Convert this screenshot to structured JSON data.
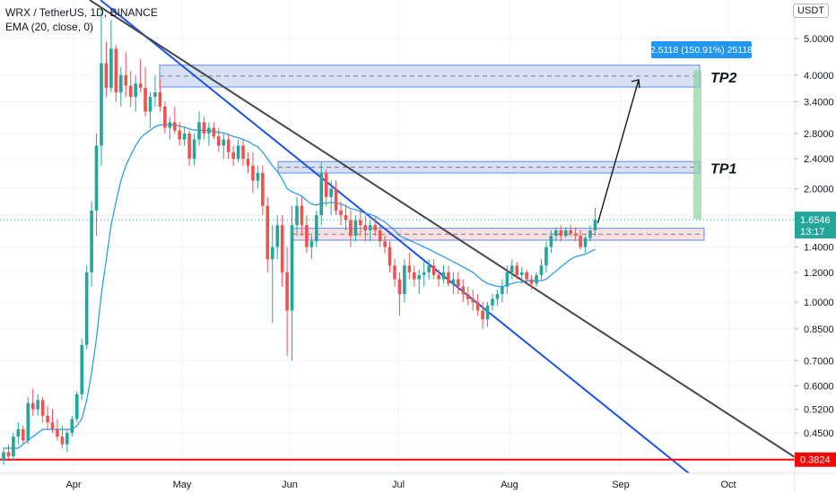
{
  "header": {
    "symbol_line": "WRX / TetherUS, 1D, BINANCE",
    "indicator_line": "EMA (20, close, 0)"
  },
  "currency": "USDT",
  "colors": {
    "up": "#26a69a",
    "down": "#ef5350",
    "ema": "#2196f3",
    "blue_line": "#1e53e5",
    "gray_line": "#434651",
    "support_line": "#ff0000",
    "zone_blue_fill": "#d1dcef",
    "zone_blue_stroke": "#5b8def",
    "zone_red_fill": "#fbd9dc",
    "zone_red_stroke": "#5b8def",
    "measure": "#2196f3",
    "measure_bar": "#8fd19e",
    "current_price": "#26a69a"
  },
  "chart_data": {
    "type": "candlestick",
    "y_scale": "log",
    "ylim": [
      0.36,
      6.0
    ],
    "y_ticks": [
      "5.0000",
      "4.0000",
      "3.4000",
      "2.8000",
      "2.4000",
      "2.0000",
      "1.7000",
      "1.4000",
      "1.2000",
      "1.0000",
      "0.8500",
      "0.7000",
      "0.6000",
      "0.5200",
      "0.4500"
    ],
    "x_ticks": [
      "Apr",
      "May",
      "Jun",
      "Jul",
      "Aug",
      "Sep",
      "Oct"
    ],
    "price_labels": {
      "current": "1.6546",
      "countdown": "13:17",
      "support": "0.3824"
    },
    "zones": [
      {
        "name": "TP2",
        "label": "TP2",
        "low": 3.72,
        "high": 4.25
      },
      {
        "name": "TP1",
        "label": "TP1",
        "low": 2.2,
        "high": 2.36
      },
      {
        "name": "entry",
        "label": "",
        "low": 1.46,
        "high": 1.57
      }
    ],
    "support_level": 0.3824,
    "measure_label": "2.5118 (150.91%) 25118",
    "candles": [
      [
        0.38,
        0.41,
        0.37,
        0.4
      ],
      [
        0.4,
        0.42,
        0.38,
        0.39
      ],
      [
        0.39,
        0.45,
        0.38,
        0.44
      ],
      [
        0.44,
        0.48,
        0.42,
        0.46
      ],
      [
        0.46,
        0.47,
        0.42,
        0.43
      ],
      [
        0.43,
        0.56,
        0.42,
        0.54
      ],
      [
        0.54,
        0.59,
        0.5,
        0.52
      ],
      [
        0.52,
        0.57,
        0.5,
        0.55
      ],
      [
        0.55,
        0.56,
        0.48,
        0.5
      ],
      [
        0.5,
        0.53,
        0.46,
        0.48
      ],
      [
        0.48,
        0.52,
        0.45,
        0.46
      ],
      [
        0.46,
        0.49,
        0.43,
        0.44
      ],
      [
        0.44,
        0.47,
        0.41,
        0.42
      ],
      [
        0.42,
        0.46,
        0.4,
        0.45
      ],
      [
        0.45,
        0.5,
        0.44,
        0.49
      ],
      [
        0.49,
        0.58,
        0.48,
        0.57
      ],
      [
        0.57,
        0.8,
        0.55,
        0.77
      ],
      [
        0.77,
        1.25,
        0.75,
        1.2
      ],
      [
        1.2,
        1.85,
        1.1,
        1.75
      ],
      [
        1.75,
        2.8,
        1.5,
        2.6
      ],
      [
        2.6,
        6.0,
        2.3,
        4.3
      ],
      [
        4.3,
        4.9,
        3.5,
        3.7
      ],
      [
        3.7,
        5.6,
        3.6,
        4.7
      ],
      [
        4.7,
        4.8,
        3.4,
        3.6
      ],
      [
        3.6,
        4.2,
        3.3,
        4.0
      ],
      [
        4.0,
        4.6,
        3.5,
        3.75
      ],
      [
        3.75,
        4.1,
        3.3,
        3.5
      ],
      [
        3.5,
        4.0,
        3.2,
        3.8
      ],
      [
        3.8,
        4.4,
        3.6,
        3.7
      ],
      [
        3.7,
        4.2,
        3.1,
        3.2
      ],
      [
        3.2,
        3.6,
        2.9,
        3.5
      ],
      [
        3.5,
        4.0,
        3.3,
        3.6
      ],
      [
        3.6,
        3.9,
        3.2,
        3.3
      ],
      [
        3.3,
        3.4,
        2.8,
        2.9
      ],
      [
        2.9,
        3.1,
        2.7,
        3.0
      ],
      [
        3.0,
        3.3,
        2.8,
        2.85
      ],
      [
        2.85,
        3.0,
        2.6,
        2.7
      ],
      [
        2.7,
        2.9,
        2.6,
        2.8
      ],
      [
        2.8,
        2.85,
        2.3,
        2.4
      ],
      [
        2.4,
        2.8,
        2.3,
        2.7
      ],
      [
        2.7,
        3.2,
        2.6,
        3.0
      ],
      [
        3.0,
        3.1,
        2.7,
        2.8
      ],
      [
        2.8,
        3.0,
        2.6,
        2.9
      ],
      [
        2.9,
        3.0,
        2.7,
        2.75
      ],
      [
        2.75,
        2.9,
        2.5,
        2.6
      ],
      [
        2.6,
        2.8,
        2.4,
        2.7
      ],
      [
        2.7,
        2.8,
        2.4,
        2.5
      ],
      [
        2.5,
        2.6,
        2.3,
        2.4
      ],
      [
        2.4,
        2.7,
        2.35,
        2.6
      ],
      [
        2.6,
        2.7,
        2.3,
        2.4
      ],
      [
        2.4,
        2.5,
        2.2,
        2.3
      ],
      [
        2.3,
        2.5,
        1.95,
        2.1
      ],
      [
        2.1,
        2.3,
        2.0,
        2.2
      ],
      [
        2.2,
        2.3,
        1.7,
        1.8
      ],
      [
        1.8,
        1.9,
        1.2,
        1.3
      ],
      [
        1.3,
        1.6,
        0.88,
        1.4
      ],
      [
        1.4,
        1.7,
        1.3,
        1.6
      ],
      [
        1.6,
        1.7,
        1.1,
        1.2
      ],
      [
        1.2,
        1.4,
        0.72,
        0.95
      ],
      [
        0.95,
        1.8,
        0.7,
        1.6
      ],
      [
        1.6,
        1.9,
        1.5,
        1.8
      ],
      [
        1.8,
        1.9,
        1.5,
        1.6
      ],
      [
        1.6,
        1.7,
        1.35,
        1.4
      ],
      [
        1.4,
        1.5,
        1.3,
        1.45
      ],
      [
        1.45,
        1.75,
        1.4,
        1.7
      ],
      [
        1.7,
        2.35,
        1.6,
        2.2
      ],
      [
        2.2,
        2.25,
        1.8,
        1.9
      ],
      [
        1.9,
        2.1,
        1.7,
        2.0
      ],
      [
        2.0,
        2.1,
        1.7,
        1.75
      ],
      [
        1.75,
        1.85,
        1.6,
        1.7
      ],
      [
        1.7,
        1.8,
        1.55,
        1.65
      ],
      [
        1.65,
        1.75,
        1.4,
        1.5
      ],
      [
        1.5,
        1.7,
        1.45,
        1.65
      ],
      [
        1.65,
        1.75,
        1.5,
        1.6
      ],
      [
        1.6,
        1.7,
        1.45,
        1.55
      ],
      [
        1.55,
        1.65,
        1.45,
        1.6
      ],
      [
        1.6,
        1.68,
        1.5,
        1.55
      ],
      [
        1.55,
        1.6,
        1.4,
        1.45
      ],
      [
        1.45,
        1.5,
        1.35,
        1.4
      ],
      [
        1.4,
        1.45,
        1.2,
        1.25
      ],
      [
        1.25,
        1.3,
        1.1,
        1.15
      ],
      [
        1.15,
        1.2,
        0.92,
        1.05
      ],
      [
        1.05,
        1.3,
        1.0,
        1.25
      ],
      [
        1.25,
        1.35,
        1.15,
        1.2
      ],
      [
        1.2,
        1.25,
        1.1,
        1.15
      ],
      [
        1.15,
        1.22,
        1.05,
        1.18
      ],
      [
        1.18,
        1.28,
        1.1,
        1.2
      ],
      [
        1.2,
        1.3,
        1.15,
        1.25
      ],
      [
        1.25,
        1.3,
        1.15,
        1.18
      ],
      [
        1.18,
        1.22,
        1.1,
        1.15
      ],
      [
        1.15,
        1.25,
        1.12,
        1.2
      ],
      [
        1.2,
        1.25,
        1.1,
        1.12
      ],
      [
        1.12,
        1.2,
        1.05,
        1.15
      ],
      [
        1.15,
        1.2,
        1.05,
        1.1
      ],
      [
        1.1,
        1.15,
        1.0,
        1.05
      ],
      [
        1.05,
        1.1,
        0.98,
        1.02
      ],
      [
        1.02,
        1.08,
        0.95,
        1.0
      ],
      [
        1.0,
        1.05,
        0.92,
        0.95
      ],
      [
        0.95,
        1.0,
        0.85,
        0.9
      ],
      [
        0.9,
        1.0,
        0.86,
        0.98
      ],
      [
        0.98,
        1.05,
        0.95,
        1.02
      ],
      [
        1.02,
        1.08,
        0.98,
        1.05
      ],
      [
        1.05,
        1.15,
        1.0,
        1.1
      ],
      [
        1.1,
        1.25,
        1.05,
        1.2
      ],
      [
        1.2,
        1.3,
        1.15,
        1.25
      ],
      [
        1.25,
        1.28,
        1.15,
        1.18
      ],
      [
        1.18,
        1.24,
        1.12,
        1.2
      ],
      [
        1.2,
        1.22,
        1.12,
        1.15
      ],
      [
        1.15,
        1.18,
        1.08,
        1.12
      ],
      [
        1.12,
        1.2,
        1.1,
        1.18
      ],
      [
        1.18,
        1.3,
        1.15,
        1.25
      ],
      [
        1.25,
        1.45,
        1.2,
        1.4
      ],
      [
        1.4,
        1.55,
        1.35,
        1.5
      ],
      [
        1.5,
        1.58,
        1.45,
        1.55
      ],
      [
        1.55,
        1.6,
        1.45,
        1.5
      ],
      [
        1.5,
        1.58,
        1.48,
        1.55
      ],
      [
        1.55,
        1.6,
        1.5,
        1.52
      ],
      [
        1.52,
        1.58,
        1.45,
        1.5
      ],
      [
        1.5,
        1.55,
        1.38,
        1.4
      ],
      [
        1.4,
        1.5,
        1.35,
        1.48
      ],
      [
        1.48,
        1.6,
        1.45,
        1.55
      ],
      [
        1.55,
        1.78,
        1.5,
        1.6546
      ]
    ],
    "ema": [
      0.41,
      0.41,
      0.41,
      0.41,
      0.42,
      0.43,
      0.44,
      0.45,
      0.46,
      0.46,
      0.46,
      0.46,
      0.46,
      0.46,
      0.46,
      0.47,
      0.49,
      0.55,
      0.65,
      0.8,
      1.05,
      1.3,
      1.6,
      1.85,
      2.1,
      2.3,
      2.45,
      2.6,
      2.72,
      2.8,
      2.86,
      2.92,
      2.95,
      2.95,
      2.96,
      2.95,
      2.93,
      2.91,
      2.88,
      2.86,
      2.86,
      2.85,
      2.85,
      2.84,
      2.82,
      2.81,
      2.78,
      2.75,
      2.73,
      2.7,
      2.67,
      2.62,
      2.58,
      2.5,
      2.4,
      2.3,
      2.22,
      2.12,
      2.0,
      1.96,
      1.94,
      1.91,
      1.86,
      1.82,
      1.81,
      1.83,
      1.83,
      1.84,
      1.83,
      1.82,
      1.8,
      1.77,
      1.76,
      1.74,
      1.72,
      1.71,
      1.69,
      1.66,
      1.63,
      1.59,
      1.55,
      1.5,
      1.48,
      1.46,
      1.44,
      1.42,
      1.4,
      1.38,
      1.36,
      1.34,
      1.32,
      1.3,
      1.28,
      1.26,
      1.24,
      1.22,
      1.2,
      1.17,
      1.14,
      1.12,
      1.11,
      1.1,
      1.1,
      1.11,
      1.12,
      1.13,
      1.13,
      1.14,
      1.14,
      1.14,
      1.14,
      1.15,
      1.18,
      1.21,
      1.24,
      1.27,
      1.3,
      1.32,
      1.33,
      1.34,
      1.36,
      1.38
    ]
  }
}
